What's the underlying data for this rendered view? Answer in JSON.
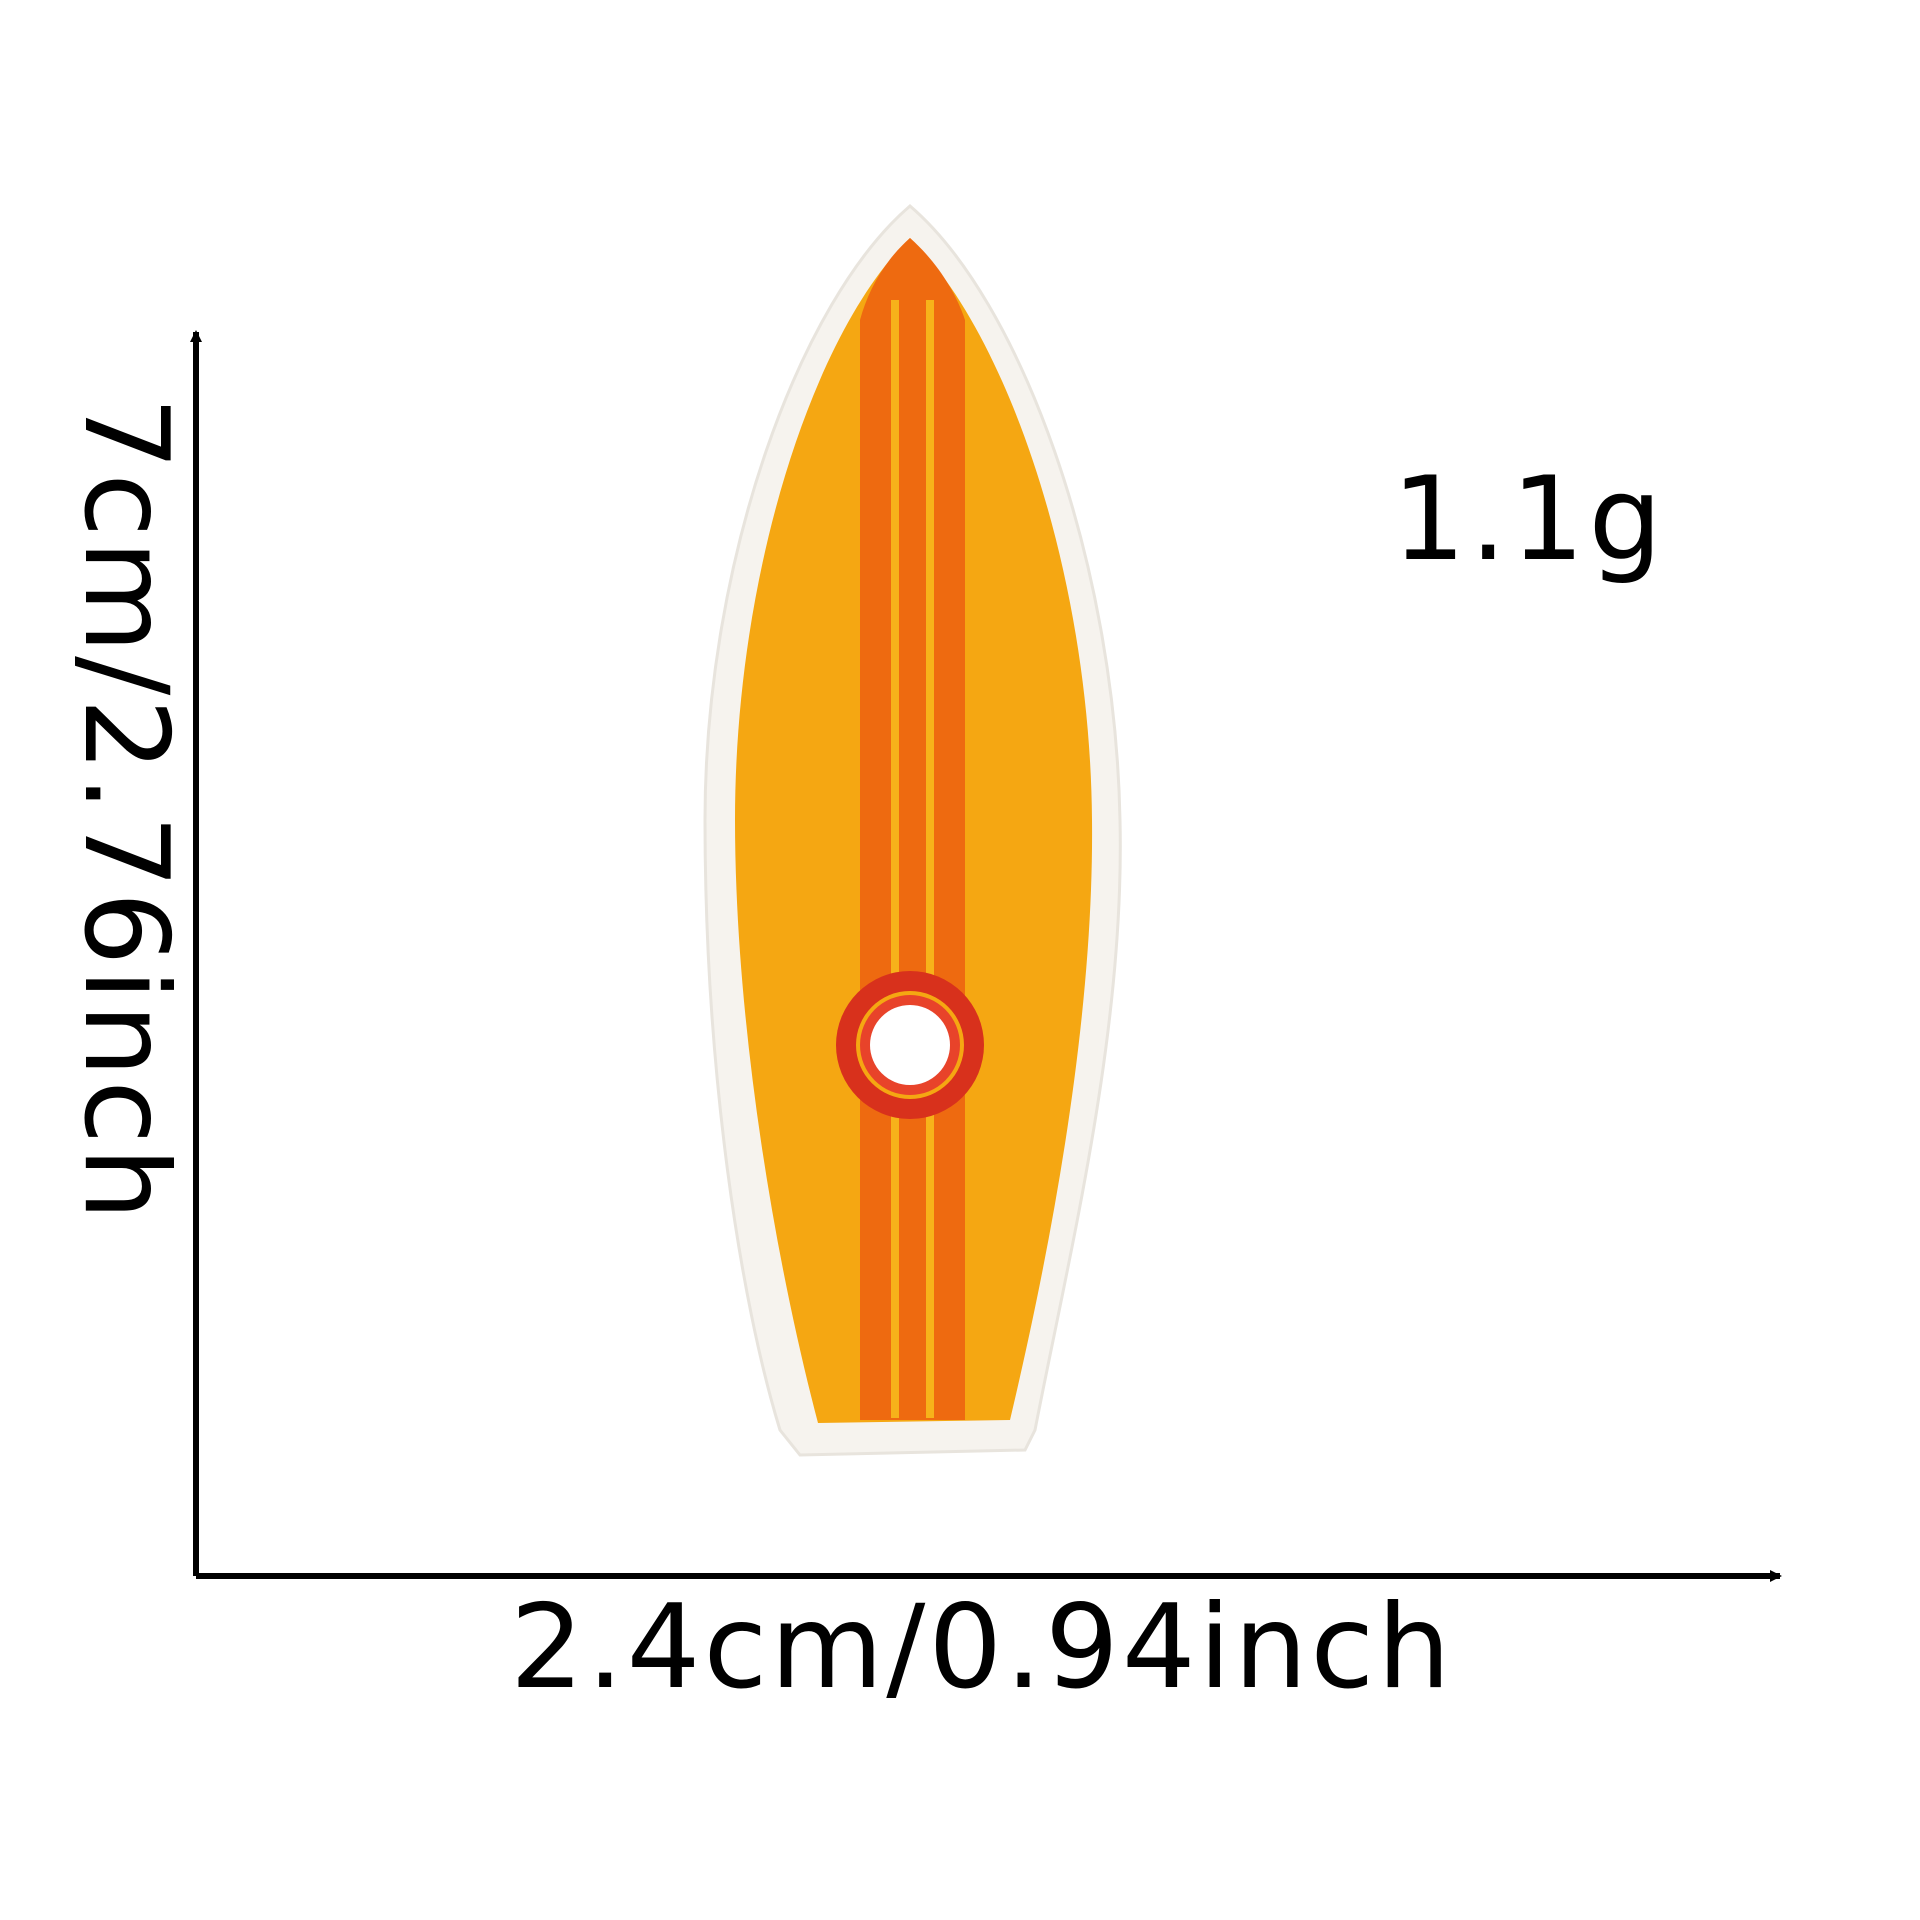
{
  "weight": "1.1g",
  "dimensions": {
    "width_label": "2.4cm/0.94inch",
    "height_label": "7cm/2.76inch"
  },
  "colors": {
    "background": "#ffffff",
    "axis": "#000000",
    "felt_border": "#f6f3ee",
    "board_body": "#f5a712",
    "board_stripe": "#ee6a10",
    "ring": "#d8311c",
    "center": "#ffffff"
  },
  "product": {
    "icon": "surfboard-patch-icon"
  }
}
